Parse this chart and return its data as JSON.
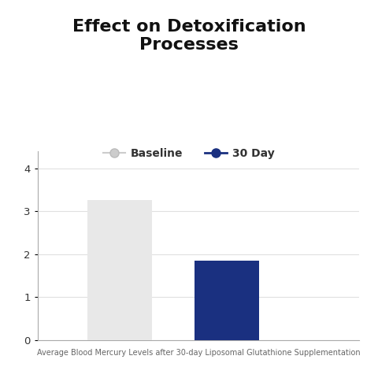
{
  "title": "Effect on Detoxification\nProcesses",
  "categories": [
    "Baseline",
    "30 Day"
  ],
  "values": [
    3.27,
    1.85
  ],
  "bar_colors": [
    "#e8e8e8",
    "#1a3080"
  ],
  "ylim": [
    0,
    4.4
  ],
  "yticks": [
    0,
    1,
    2,
    3,
    4
  ],
  "legend_labels": [
    "Baseline",
    "30 Day"
  ],
  "legend_colors": [
    "#cccccc",
    "#1a3080"
  ],
  "xlabel": "Average Blood Mercury Levels after 30-day Liposomal Glutathione Supplementation",
  "background_color": "#ffffff",
  "title_fontsize": 16,
  "xlabel_fontsize": 7,
  "bar_width": 0.18,
  "bar_positions": [
    0.28,
    0.58
  ]
}
